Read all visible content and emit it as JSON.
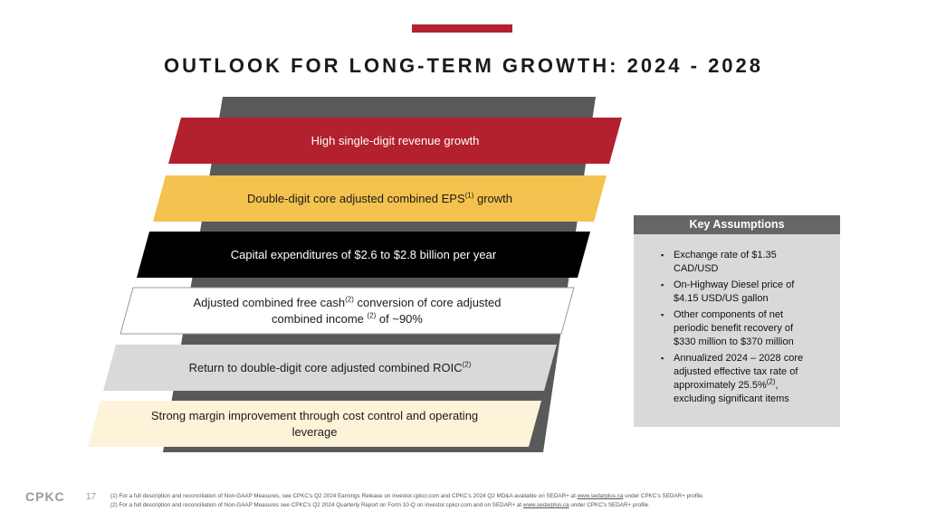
{
  "title": "OUTLOOK FOR LONG-TERM GROWTH: 2024 - 2028",
  "bars": [
    {
      "color": "#b3202e",
      "text_color": "#ffffff",
      "lines": [
        [
          "High single-digit revenue growth"
        ]
      ]
    },
    {
      "color": "#f3c24f",
      "text_color": "#1a1a1a",
      "lines": [
        [
          "Double-digit core adjusted combined EPS",
          {
            "t": "(1)",
            "sup": true
          },
          " growth"
        ]
      ]
    },
    {
      "color": "#000000",
      "text_color": "#ffffff",
      "lines": [
        [
          "Capital expenditures of $2.6 to $2.8 billion per year"
        ]
      ]
    },
    {
      "color": "#ffffff",
      "text_color": "#1a1a1a",
      "lines": [
        [
          "Adjusted combined free cash",
          {
            "t": "(2)",
            "sup": true
          },
          " conversion of core adjusted"
        ],
        [
          "combined income ",
          {
            "t": "(2)",
            "sup": true
          },
          " of ~90%"
        ]
      ]
    },
    {
      "color": "#d9d9d9",
      "text_color": "#1a1a1a",
      "lines": [
        [
          "Return to double-digit core adjusted combined ROIC",
          {
            "t": "(2)",
            "sup": true
          }
        ]
      ]
    },
    {
      "color": "#fdf3d8",
      "text_color": "#1a1a1a",
      "lines": [
        [
          "Strong margin improvement through cost control and operating"
        ],
        [
          "leverage"
        ]
      ]
    }
  ],
  "assumptions": {
    "title": "Key Assumptions",
    "bullets": [
      [
        [
          "Exchange rate of $1.35"
        ],
        [
          "CAD/USD"
        ]
      ],
      [
        [
          "On-Highway Diesel price of"
        ],
        [
          "$4.15 USD/US gallon"
        ]
      ],
      [
        [
          "Other components of net"
        ],
        [
          "periodic benefit recovery of"
        ],
        [
          "$330 million to $370 million"
        ]
      ],
      [
        [
          "Annualized 2024 – 2028 core"
        ],
        [
          "adjusted effective tax rate of"
        ],
        [
          "approximately 25.5%",
          {
            "t": "(2)",
            "sup": true
          },
          ","
        ],
        [
          "excluding significant items"
        ]
      ]
    ]
  },
  "footer": {
    "logo": "CPKC",
    "page": "17",
    "notes": [
      [
        "(1)  For a full description and reconciliation of Non-GAAP Measures, see CPKC's Q2 2024 Earnings Release on investor.cpkcr.com and CPKC's 2024 Q2 MD&A available on SEDAR+ at ",
        {
          "t": "www.sedarplus.ca",
          "u": true
        },
        " under CPKC's SEDAR+ profile."
      ],
      [
        "(2)  For a full description and reconciliation of Non-GAAP Measures see CPKC's Q2 2024 Quarterly Report on Form 10-Q on investor.cpkcr.com and on SEDAR+ at ",
        {
          "t": "www.sedarplus.ca",
          "u": true
        },
        " under CPKC's SEDAR+ profile."
      ]
    ]
  }
}
